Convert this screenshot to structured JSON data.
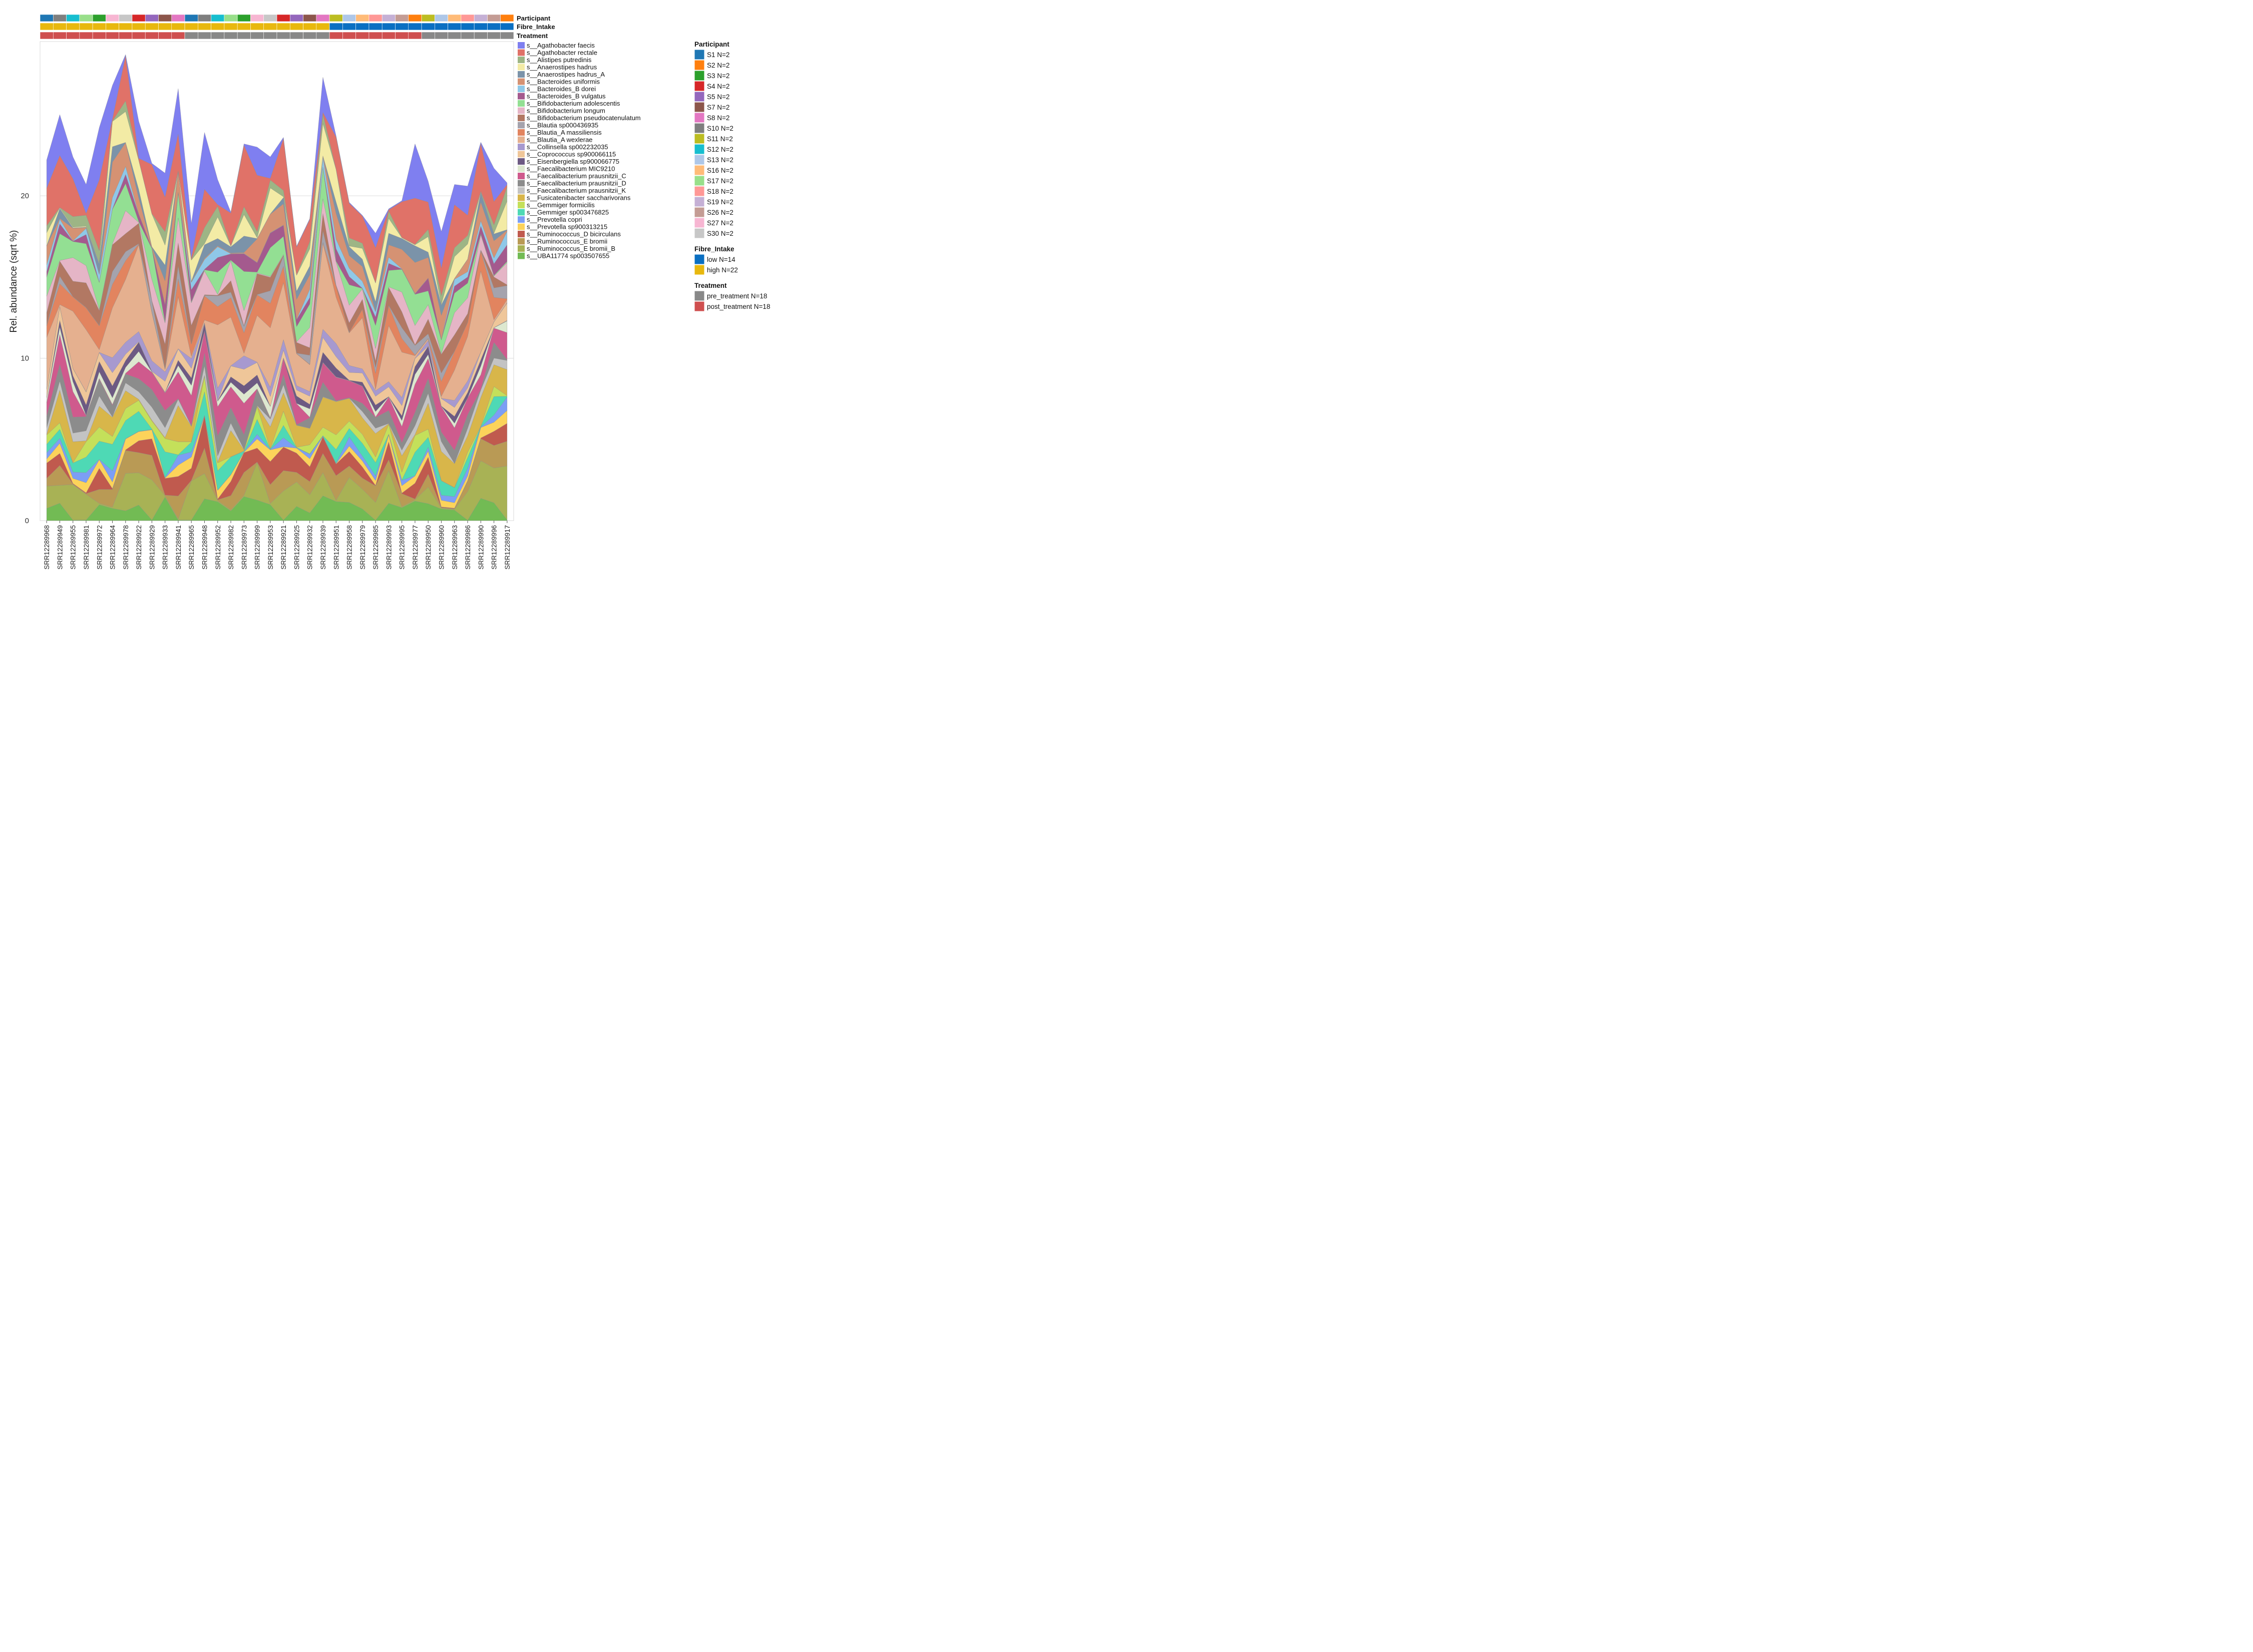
{
  "chart_data": {
    "type": "area",
    "ylabel": "Rel. abundance (sqrt %)",
    "ylim": [
      0,
      29.5
    ],
    "yticks": [
      "0",
      "10",
      "20"
    ],
    "grid": true,
    "samples": [
      "SRR12289968",
      "SRR12289949",
      "SRR12289955",
      "SRR12289981",
      "SRR12289972",
      "SRR12289964",
      "SRR12289978",
      "SRR12289922",
      "SRR12289929",
      "SRR12289933",
      "SRR12289941",
      "SRR12289965",
      "SRR12289948",
      "SRR12289952",
      "SRR12289982",
      "SRR12289973",
      "SRR12289999",
      "SRR12289953",
      "SRR12289921",
      "SRR12289925",
      "SRR12289932",
      "SRR12289939",
      "SRR12289951",
      "SRR12289958",
      "SRR12289979",
      "SRR12289985",
      "SRR12289993",
      "SRR12289995",
      "SRR12289977",
      "SRR12289950",
      "SRR12289960",
      "SRR12289963",
      "SRR12289986",
      "SRR12289990",
      "SRR12289996",
      "SRR12289917"
    ],
    "totals": [
      22.2,
      25,
      22.4,
      20.7,
      24.2,
      26.8,
      28.7,
      24.6,
      22.0,
      21.4,
      26.6,
      18.3,
      23.9,
      21.0,
      19.0,
      23.2,
      23.0,
      22.4,
      23.6,
      16.9,
      18.6,
      27.3,
      23.7,
      19.6,
      18.8,
      17.7,
      19.2,
      19.7,
      23.2,
      20.9,
      17.8,
      20.7,
      20.6,
      23.3,
      21.7,
      20.8
    ],
    "annotation_rows": {
      "Participant": [
        "S1",
        "S10",
        "S12",
        "S17",
        "S3",
        "S27",
        "S30",
        "S4",
        "S5",
        "S7",
        "S8",
        "S1",
        "S10",
        "S12",
        "S17",
        "S3",
        "S27",
        "S30",
        "S4",
        "S5",
        "S7",
        "S8",
        "S11",
        "S13",
        "S16",
        "S18",
        "S19",
        "S26",
        "S2",
        "S11",
        "S13",
        "S16",
        "S18",
        "S19",
        "S26",
        "S2"
      ],
      "Fibre_Intake": [
        "high",
        "high",
        "high",
        "high",
        "high",
        "high",
        "high",
        "high",
        "high",
        "high",
        "high",
        "high",
        "high",
        "high",
        "high",
        "high",
        "high",
        "high",
        "high",
        "high",
        "high",
        "high",
        "low",
        "low",
        "low",
        "low",
        "low",
        "low",
        "low",
        "low",
        "low",
        "low",
        "low",
        "low",
        "low",
        "low"
      ],
      "Treatment": [
        "post",
        "post",
        "post",
        "post",
        "post",
        "post",
        "post",
        "post",
        "post",
        "post",
        "post",
        "pre",
        "pre",
        "pre",
        "pre",
        "pre",
        "pre",
        "pre",
        "pre",
        "pre",
        "pre",
        "pre",
        "post",
        "post",
        "post",
        "post",
        "post",
        "post",
        "post",
        "pre",
        "pre",
        "pre",
        "pre",
        "pre",
        "pre",
        "pre"
      ]
    },
    "series": [
      {
        "name": "s__Agathobacter faecis",
        "color": "#7f7ff0"
      },
      {
        "name": "s__Agathobacter rectale",
        "color": "#e07268"
      },
      {
        "name": "s__Alistipes putredinis",
        "color": "#9db585"
      },
      {
        "name": "s__Anaerostipes hadrus",
        "color": "#f3eba5"
      },
      {
        "name": "s__Anaerostipes hadrus_A",
        "color": "#7b93a9"
      },
      {
        "name": "s__Bacteroides uniformis",
        "color": "#d59273"
      },
      {
        "name": "s__Bacteroides_B dorei",
        "color": "#8fc8e8"
      },
      {
        "name": "s__Bacteroides_B vulgatus",
        "color": "#a45a8e"
      },
      {
        "name": "s__Bifidobacterium adolescentis",
        "color": "#93df93"
      },
      {
        "name": "s__Bifidobacterium longum",
        "color": "#e5b5c6"
      },
      {
        "name": "s__Bifidobacterium pseudocatenulatum",
        "color": "#b27863"
      },
      {
        "name": "s__Blautia sp000436935",
        "color": "#a5a3ad"
      },
      {
        "name": "s__Blautia_A massiliensis",
        "color": "#e2845f"
      },
      {
        "name": "s__Blautia_A wexlerae",
        "color": "#e5b08f"
      },
      {
        "name": "s__Collinsella sp002232035",
        "color": "#a799cf"
      },
      {
        "name": "s__Coprococcus sp900066115",
        "color": "#efc699"
      },
      {
        "name": "s__Eisenbergiella sp900066775",
        "color": "#6d5a83"
      },
      {
        "name": "s__Faecalibacterium MIC9210",
        "color": "#dde8cf"
      },
      {
        "name": "s__Faecalibacterium prausnitzii_C",
        "color": "#cf5a8d"
      },
      {
        "name": "s__Faecalibacterium prausnitzii_D",
        "color": "#8c8c8c"
      },
      {
        "name": "s__Faecalibacterium prausnitzii_K",
        "color": "#c3c3c3"
      },
      {
        "name": "s__Fusicatenibacter saccharivorans",
        "color": "#d8b64a"
      },
      {
        "name": "s__Gemmiger formicilis",
        "color": "#c4e05a"
      },
      {
        "name": "s__Gemmiger sp003476825",
        "color": "#4ed9b5"
      },
      {
        "name": "s__Prevotella copri",
        "color": "#7c9ef5"
      },
      {
        "name": "s__Prevotella sp900313215",
        "color": "#fcd35a"
      },
      {
        "name": "s__Ruminococcus_D bicirculans",
        "color": "#c05a4e"
      },
      {
        "name": "s__Ruminococcus_E bromii",
        "color": "#b99a55"
      },
      {
        "name": "s__Ruminococcus_E bromii_B",
        "color": "#a8b255"
      },
      {
        "name": "s__UBA11774 sp003507655",
        "color": "#72bb54"
      }
    ],
    "legend": {
      "Participant": {
        "title": "Participant",
        "items": [
          {
            "label": "S1 N=2",
            "key": "S1",
            "color": "#1f77b4"
          },
          {
            "label": "S2 N=2",
            "key": "S2",
            "color": "#ff7f0e"
          },
          {
            "label": "S3 N=2",
            "key": "S3",
            "color": "#2ca02c"
          },
          {
            "label": "S4 N=2",
            "key": "S4",
            "color": "#d62728"
          },
          {
            "label": "S5 N=2",
            "key": "S5",
            "color": "#9467bd"
          },
          {
            "label": "S7 N=2",
            "key": "S7",
            "color": "#8c564b"
          },
          {
            "label": "S8 N=2",
            "key": "S8",
            "color": "#e377c2"
          },
          {
            "label": "S10 N=2",
            "key": "S10",
            "color": "#7f7f7f"
          },
          {
            "label": "S11 N=2",
            "key": "S11",
            "color": "#bcbd22"
          },
          {
            "label": "S12 N=2",
            "key": "S12",
            "color": "#17becf"
          },
          {
            "label": "S13 N=2",
            "key": "S13",
            "color": "#aec7e8"
          },
          {
            "label": "S16 N=2",
            "key": "S16",
            "color": "#ffbb78"
          },
          {
            "label": "S17 N=2",
            "key": "S17",
            "color": "#98df8a"
          },
          {
            "label": "S18 N=2",
            "key": "S18",
            "color": "#ff9896"
          },
          {
            "label": "S19 N=2",
            "key": "S19",
            "color": "#c5b0d5"
          },
          {
            "label": "S26 N=2",
            "key": "S26",
            "color": "#c49c94"
          },
          {
            "label": "S27 N=2",
            "key": "S27",
            "color": "#f7b6d2"
          },
          {
            "label": "S30 N=2",
            "key": "S30",
            "color": "#c7c7c7"
          }
        ]
      },
      "Fibre_Intake": {
        "title": "Fibre_Intake",
        "items": [
          {
            "label": "low N=14",
            "key": "low",
            "color": "#0a6fc2"
          },
          {
            "label": "high N=22",
            "key": "high",
            "color": "#e8b80e"
          }
        ]
      },
      "Treatment": {
        "title": "Treatment",
        "items": [
          {
            "label": "pre_treatment N=18",
            "key": "pre",
            "color": "#888888"
          },
          {
            "label": "post_treatment N=18",
            "key": "post",
            "color": "#cf4f4f"
          }
        ]
      }
    }
  }
}
